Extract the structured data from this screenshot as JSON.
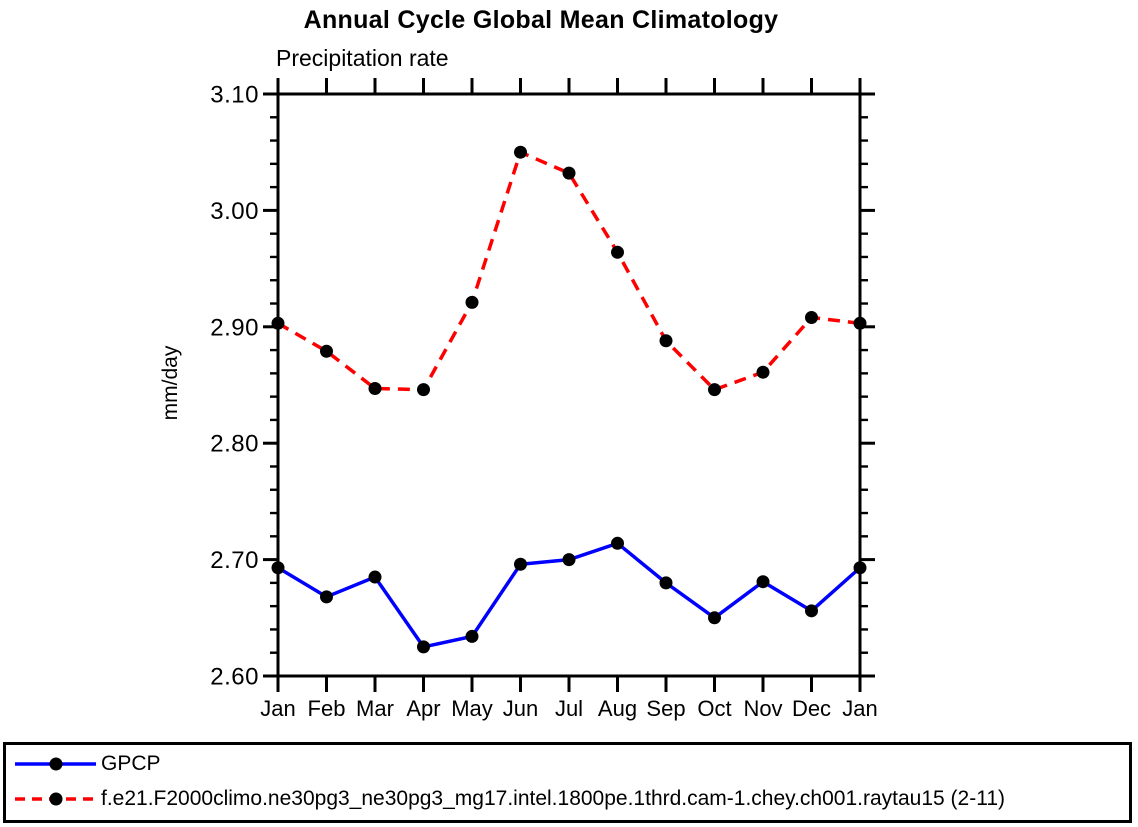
{
  "chart_data": {
    "type": "line",
    "title": "Annual Cycle Global Mean Climatology",
    "subtitle": "Precipitation rate",
    "ylabel": "mm/day",
    "xlabel": "",
    "categories": [
      "Jan",
      "Feb",
      "Mar",
      "Apr",
      "May",
      "Jun",
      "Jul",
      "Aug",
      "Sep",
      "Oct",
      "Nov",
      "Dec",
      "Jan"
    ],
    "series": [
      {
        "name": "GPCP",
        "color": "#0000ff",
        "line_style": "solid",
        "marker": "filled-circle",
        "marker_color": "#000000",
        "values": [
          2.693,
          2.668,
          2.685,
          2.625,
          2.634,
          2.696,
          2.7,
          2.714,
          2.68,
          2.65,
          2.681,
          2.656,
          2.693
        ]
      },
      {
        "name": "f.e21.F2000climo.ne30pg3_ne30pg3_mg17.intel.1800pe.1thrd.cam-1.chey.ch001.raytau15 (2-11)",
        "color": "#ff0000",
        "line_style": "dashed",
        "marker": "filled-circle",
        "marker_color": "#000000",
        "values": [
          2.903,
          2.879,
          2.847,
          2.846,
          2.921,
          3.05,
          3.032,
          2.964,
          2.888,
          2.846,
          2.861,
          2.908,
          2.903
        ]
      }
    ],
    "ylim": [
      2.6,
      3.1
    ],
    "ytick_major_step": 0.1,
    "ytick_minor_step": 0.02,
    "ytick_labels": [
      "2.60",
      "2.70",
      "2.80",
      "2.90",
      "3.00",
      "3.10"
    ],
    "grid": false,
    "axis_color": "#000000",
    "legend_position": "bottom-left-box"
  }
}
